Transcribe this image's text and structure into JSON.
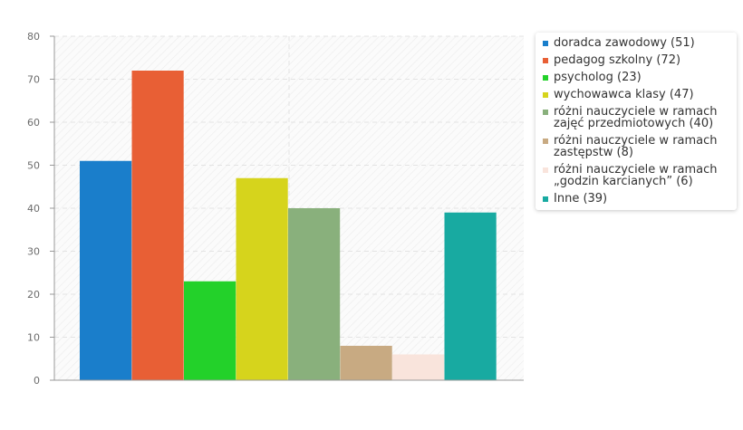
{
  "chart_data": {
    "type": "bar",
    "categories": [
      "doradca zawodowy",
      "pedagog szkolny",
      "psycholog",
      "wychowawca klasy",
      "różni nauczyciele w ramach zajęć przedmiotowych",
      "różni nauczyciele w ramach zastępstw",
      "różni nauczyciele w ramach „godzin karcianych”",
      "Inne"
    ],
    "values": [
      51,
      72,
      23,
      47,
      40,
      8,
      6,
      39
    ],
    "colors": [
      "#1a7ecb",
      "#e85f35",
      "#23d12a",
      "#d6d41c",
      "#89b07c",
      "#c8aa82",
      "#f9e4dc",
      "#18aaa1"
    ],
    "ylim": [
      0,
      80
    ],
    "yticks": [
      0,
      10,
      20,
      30,
      40,
      50,
      60,
      70,
      80
    ],
    "grid": true,
    "legend_position": "right",
    "legend": [
      "doradca zawodowy (51)",
      "pedagog szkolny (72)",
      "psycholog (23)",
      "wychowawca klasy (47)",
      "różni nauczyciele w ramach zajęć przedmiotowych (40)",
      "różni nauczyciele w ramach zastępstw (8)",
      "różni nauczyciele w ramach „godzin karcianych” (6)",
      "Inne (39)"
    ]
  }
}
